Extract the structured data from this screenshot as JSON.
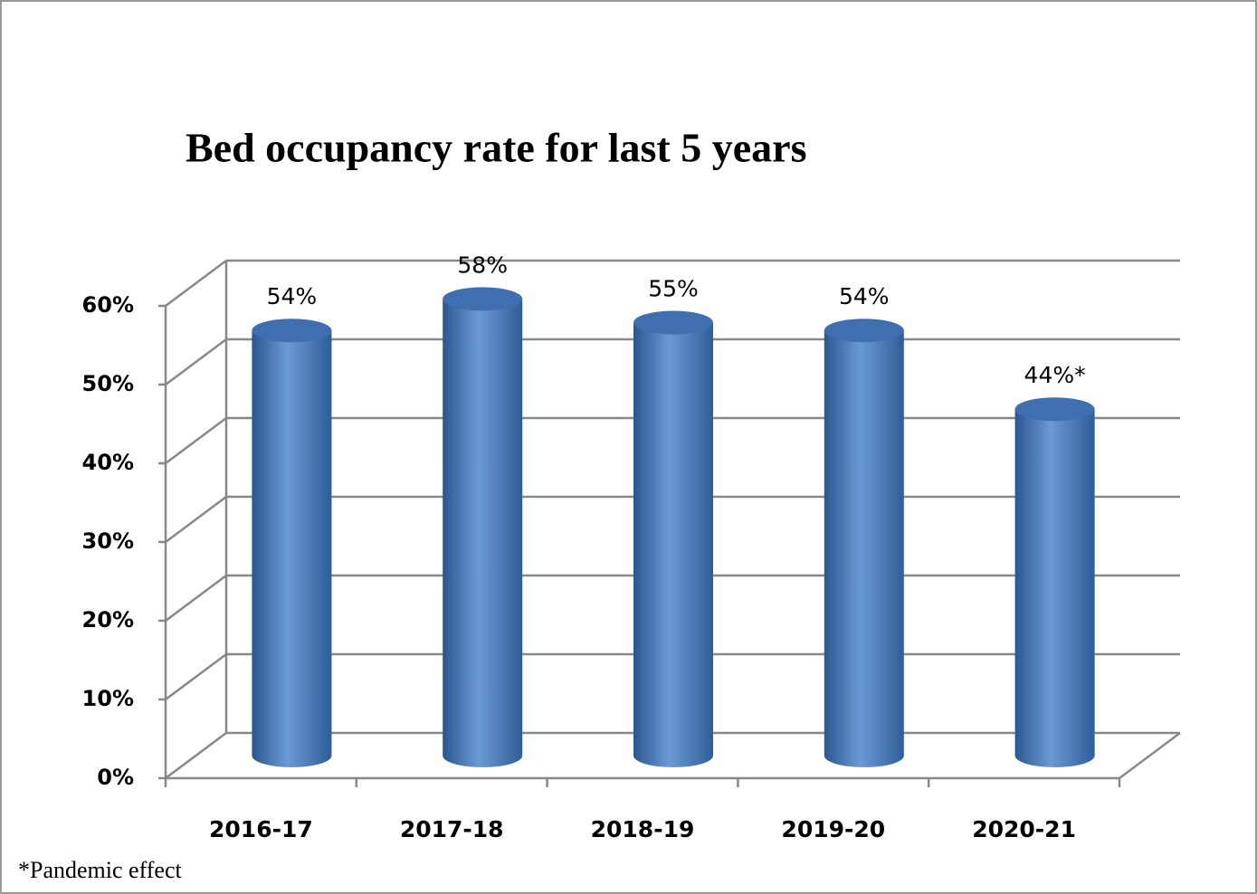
{
  "chart_data": {
    "type": "bar",
    "title": "Bed occupancy rate for last 5 years",
    "categories": [
      "2016-17",
      "2017-18",
      "2018-19",
      "2019-20",
      "2020-21"
    ],
    "values": [
      54,
      58,
      55,
      54,
      44
    ],
    "value_labels": [
      "54%",
      "58%",
      "55%",
      "54%",
      "44%*"
    ],
    "color": "#4f81bd",
    "ylim": [
      0,
      60
    ],
    "yticks": [
      {
        "value": 0,
        "label": "0%"
      },
      {
        "value": 10,
        "label": "10%"
      },
      {
        "value": 20,
        "label": "20%"
      },
      {
        "value": 30,
        "label": "30%"
      },
      {
        "value": 40,
        "label": "40%"
      },
      {
        "value": 50,
        "label": "50%"
      },
      {
        "value": 60,
        "label": "60%"
      }
    ],
    "grid": true,
    "annotation": "*Pandemic effect"
  }
}
